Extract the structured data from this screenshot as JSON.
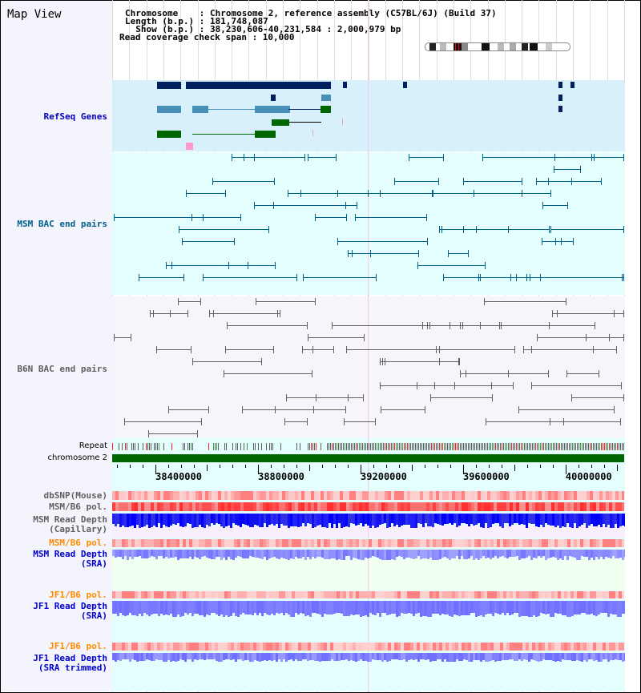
{
  "title": "Map View",
  "header": {
    "chromosome": "Chromosome    : Chromosome 2, reference assembly (C57BL/6J) (Build 37)",
    "length": "Length (b.p.) : 181,748,087",
    "show": "  Show (b.p.) : 38,230,606-40,231,584 : 2,000,979 bp",
    "span": "Read coverage check span : 10,000"
  },
  "tracks": {
    "refseq": "RefSeq Genes",
    "msm_bac": "MSM BAC end pairs",
    "b6n_bac": "B6N BAC end pairs",
    "repeat": "Repeat",
    "chromosome": "chromosome 2",
    "dbsnp": "dbSNP(Mouse)",
    "msm_pol1": "MSM/B6 pol.",
    "msm_cap": "MSM Read Depth\n(Capillary)",
    "msm_pol2": "MSM/B6 pol.",
    "msm_sra": "MSM Read Depth\n(SRA)",
    "jf1_pol1": "JF1/B6 pol.",
    "jf1_sra": "JF1 Read Depth\n(SRA)",
    "jf1_pol2": "JF1/B6 pol.",
    "jf1_trim": "JF1 Read Depth\n(SRA trimmed)"
  },
  "axis": {
    "start": 38230606,
    "end": 40231584,
    "ticks": [
      "38400000",
      "38800000",
      "39200000",
      "39600000",
      "40000000"
    ]
  },
  "colors": {
    "refseq_dark": "#002060",
    "refseq_mid": "#4890b8",
    "refseq_green": "#006600",
    "msm_bac": "#00608c",
    "b6n_bac": "#606060",
    "chrom": "#006600",
    "depth_cap": "#0000ff",
    "depth_sra": "#7070ff"
  }
}
